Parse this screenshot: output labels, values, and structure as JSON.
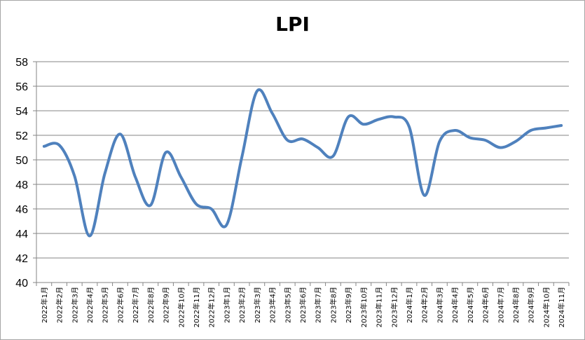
{
  "chart_data": {
    "type": "line",
    "title": "LPI",
    "xlabel": "",
    "ylabel": "",
    "ylim": [
      40,
      58
    ],
    "yticks": [
      "40",
      "42",
      "44",
      "46",
      "48",
      "50",
      "52",
      "54",
      "56",
      "58"
    ],
    "grid": true,
    "categories": [
      "2022年1月",
      "2022年2月",
      "2022年3月",
      "2022年4月",
      "2022年5月",
      "2022年6月",
      "2022年7月",
      "2022年8月",
      "2022年9月",
      "2022年10月",
      "2022年11月",
      "2022年12月",
      "2023年1月",
      "2023年2月",
      "2023年3月",
      "2023年4月",
      "2023年5月",
      "2023年6月",
      "2023年7月",
      "2023年8月",
      "2023年9月",
      "2023年10月",
      "2023年11月",
      "2023年12月",
      "2024年1月",
      "2024年2月",
      "2024年3月",
      "2024年4月",
      "2024年5月",
      "2024年6月",
      "2024年7月",
      "2024年8月",
      "2024年9月",
      "2024年10月",
      "2024年11月"
    ],
    "series": [
      {
        "name": "",
        "color": "#4f81bd",
        "values": [
          51.1,
          51.2,
          48.7,
          43.8,
          48.9,
          52.1,
          48.6,
          46.3,
          50.6,
          48.6,
          46.4,
          46.0,
          44.7,
          50.2,
          55.6,
          53.8,
          51.6,
          51.7,
          51.0,
          50.3,
          53.5,
          52.9,
          53.3,
          53.5,
          52.7,
          47.1,
          51.5,
          52.4,
          51.8,
          51.6,
          51.0,
          51.5,
          52.4,
          52.6,
          52.8
        ]
      }
    ]
  }
}
